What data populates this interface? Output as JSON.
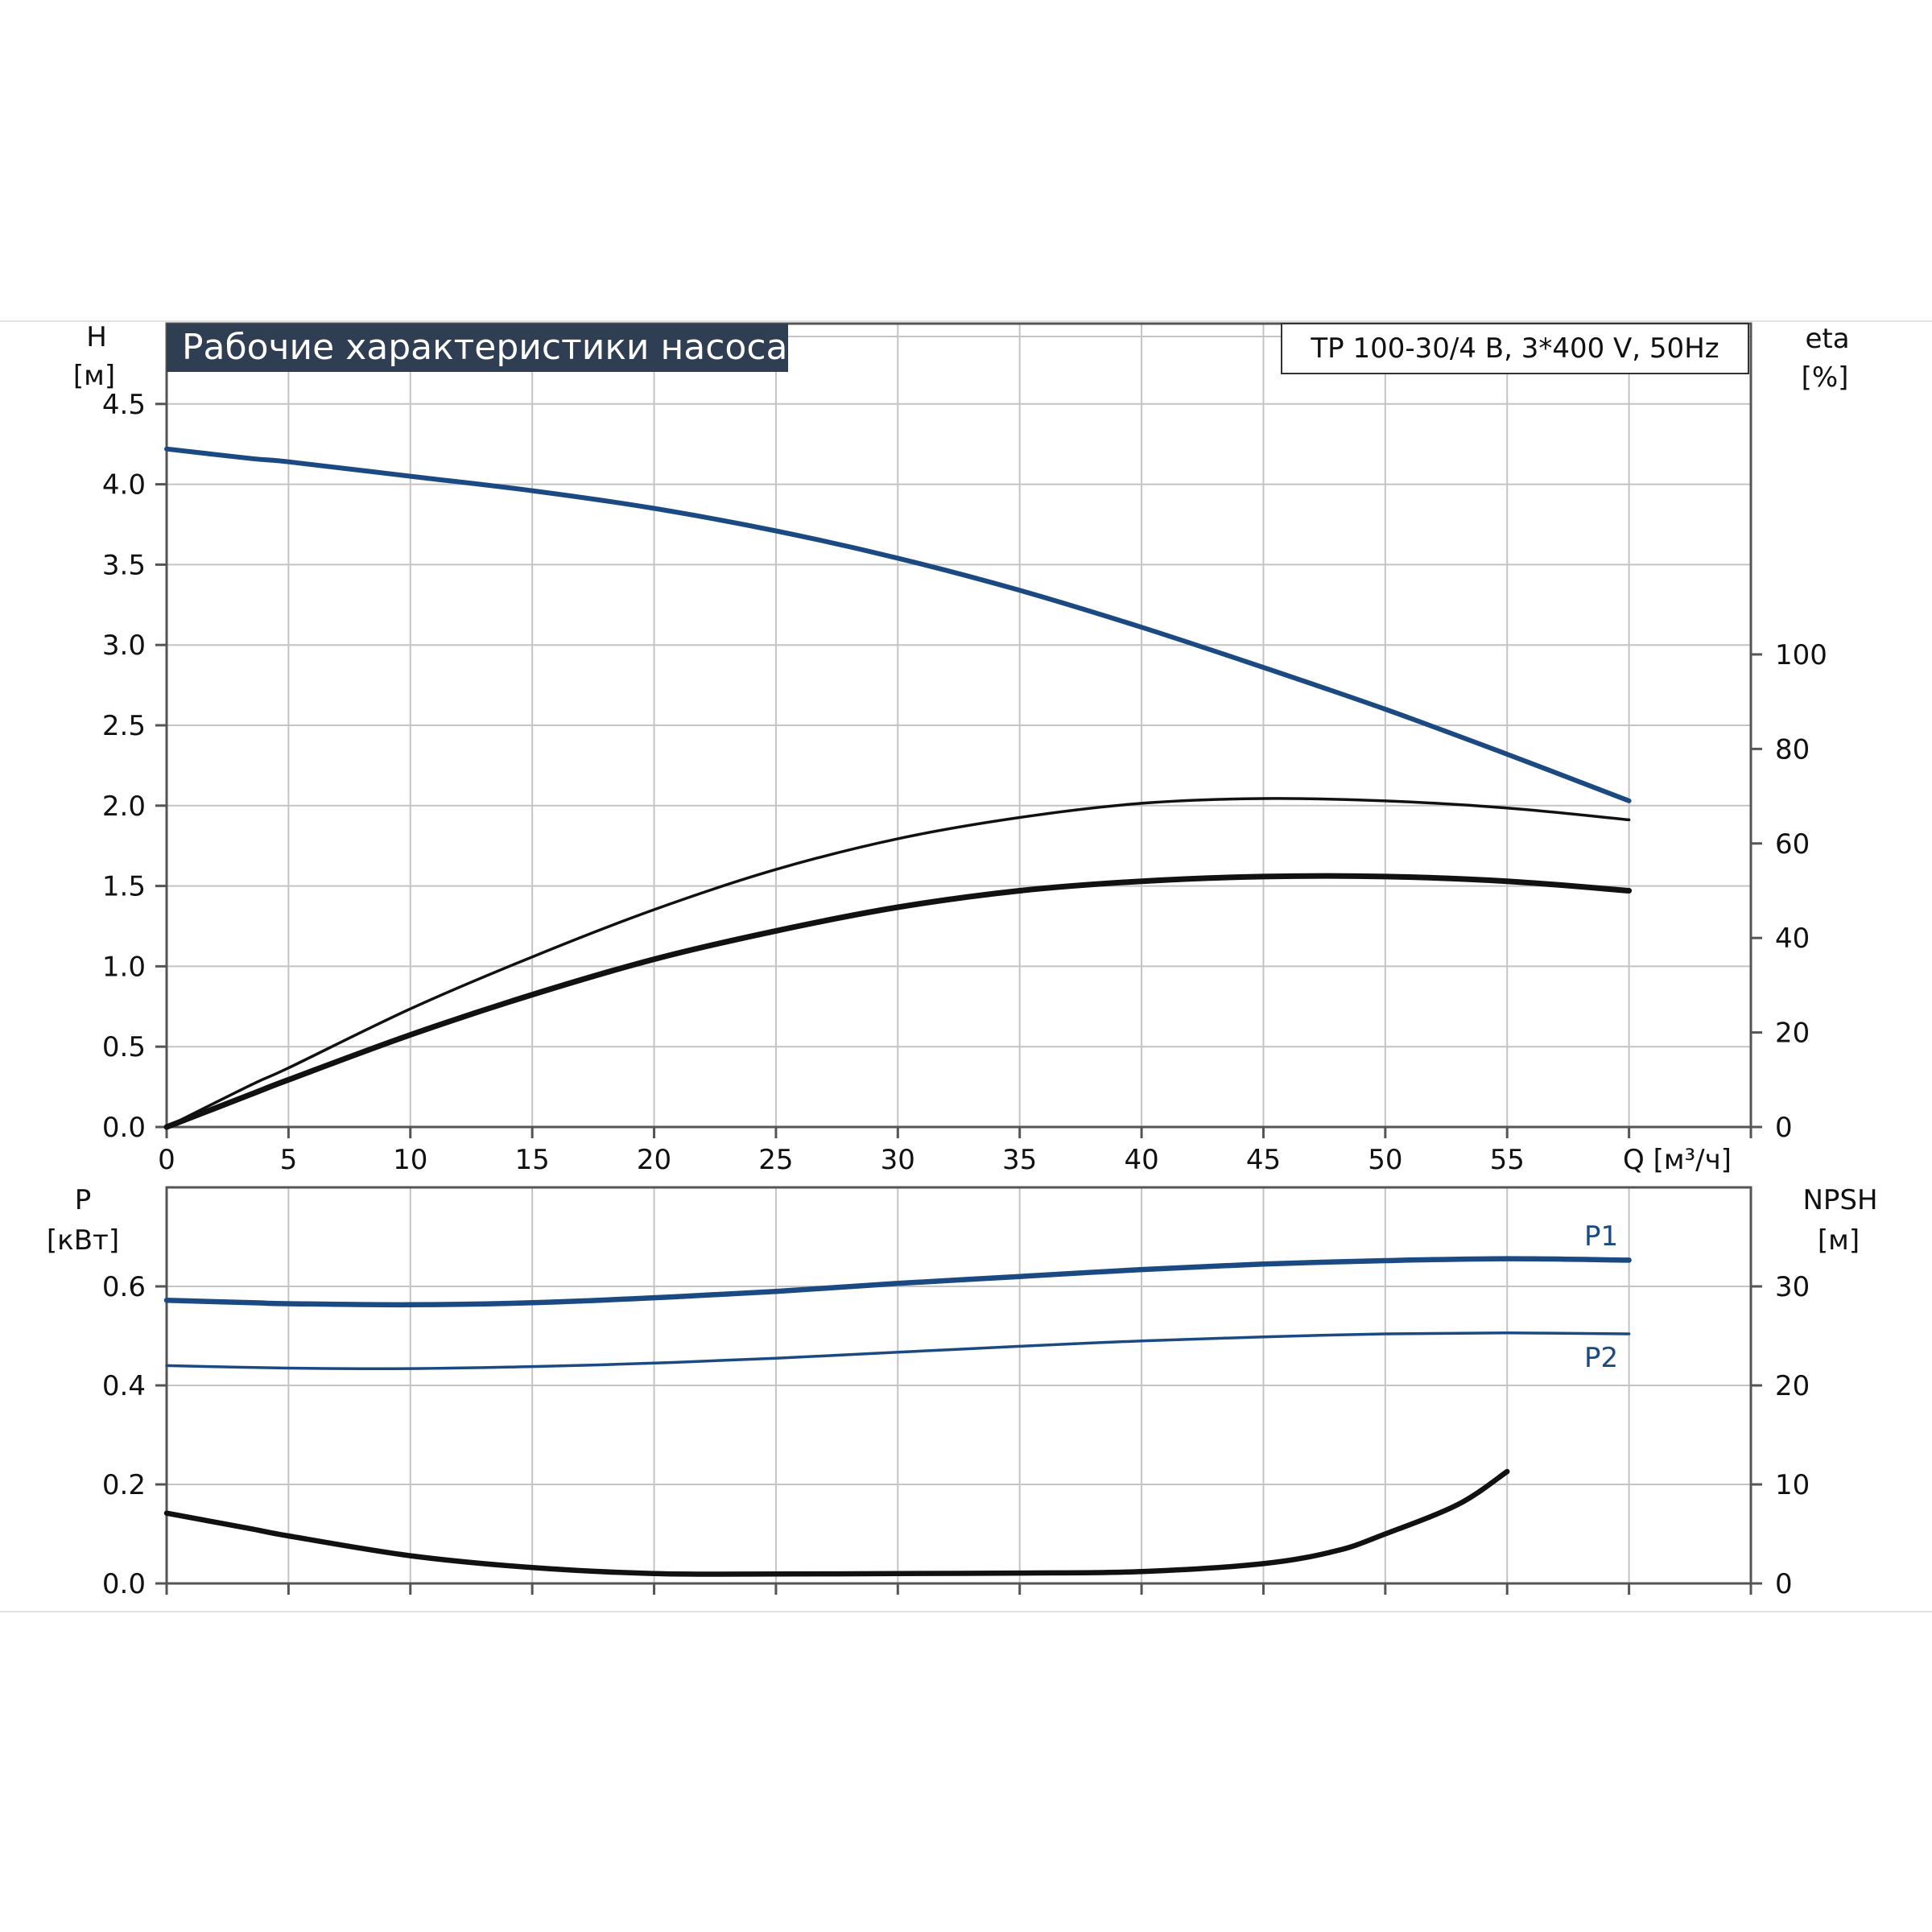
{
  "title": "Рабочие характеристики насоса",
  "model_label": "TP 100-30/4 B, 3*400 V, 50Hz",
  "colors": {
    "title_bg": "#2f3e52",
    "blue": "#1b4a82",
    "black": "#111111",
    "grid": "#c4c4c4",
    "frame": "#555555"
  },
  "chart_data": [
    {
      "type": "line",
      "x_axis": {
        "label": "Q [м³/ч]",
        "range": [
          0,
          65
        ],
        "ticks": [
          0,
          5,
          10,
          15,
          20,
          25,
          30,
          35,
          40,
          45,
          50,
          55
        ]
      },
      "y_left": {
        "label_top": "H",
        "label_unit": "[м]",
        "range": [
          0,
          5.0
        ],
        "ticks": [
          "0.0",
          "0.5",
          "1.0",
          "1.5",
          "2.0",
          "2.5",
          "3.0",
          "3.5",
          "4.0",
          "4.5"
        ]
      },
      "y_right": {
        "label_top": "eta",
        "label_unit": "[%]",
        "range": [
          0,
          170
        ],
        "ticks": [
          "0",
          "20",
          "40",
          "60",
          "80",
          "100"
        ]
      },
      "grid": true,
      "series": [
        {
          "key": "head",
          "axis": "left",
          "color": "#1b4a82",
          "x": [
            0,
            3.5,
            5,
            10,
            15,
            20,
            25,
            30,
            35,
            40,
            45,
            50,
            55,
            60
          ],
          "y": [
            4.22,
            4.16,
            4.14,
            4.05,
            3.96,
            3.85,
            3.71,
            3.54,
            3.34,
            3.11,
            2.86,
            2.6,
            2.32,
            2.03
          ]
        },
        {
          "key": "eta_thin",
          "axis": "right",
          "color": "#111111",
          "x": [
            0,
            3.5,
            5,
            10,
            15,
            20,
            25,
            30,
            35,
            40,
            45,
            50,
            55,
            60
          ],
          "y": [
            0,
            9,
            12.5,
            25,
            36,
            46,
            54.5,
            61,
            65.5,
            68.5,
            69.5,
            69,
            67.5,
            65
          ]
        },
        {
          "key": "eta_thick",
          "axis": "right",
          "color": "#111111",
          "x": [
            0,
            3.5,
            5,
            10,
            15,
            20,
            25,
            30,
            35,
            40,
            45,
            50,
            55,
            60
          ],
          "y": [
            0,
            7,
            10,
            19.5,
            28,
            35.5,
            41.5,
            46.5,
            50,
            52,
            53,
            53,
            52,
            50
          ]
        }
      ]
    },
    {
      "type": "line",
      "x_axis": {
        "range": [
          0,
          65
        ]
      },
      "y_left": {
        "label_top": "P",
        "label_unit": "[кВт]",
        "range": [
          0,
          0.8
        ],
        "ticks": [
          "0.0",
          "0.2",
          "0.4",
          "0.6"
        ]
      },
      "y_right": {
        "label_top": "NPSH",
        "label_unit": "[м]",
        "range": [
          0,
          40
        ],
        "ticks": [
          "0",
          "10",
          "20",
          "30"
        ]
      },
      "grid": true,
      "series": [
        {
          "key": "p1",
          "name": "P1",
          "axis": "left",
          "color": "#1b4a82",
          "x": [
            0,
            3.5,
            5,
            10,
            15,
            20,
            25,
            30,
            35,
            40,
            45,
            50,
            55,
            60
          ],
          "y": [
            0.572,
            0.567,
            0.565,
            0.563,
            0.567,
            0.577,
            0.59,
            0.606,
            0.62,
            0.634,
            0.645,
            0.652,
            0.656,
            0.653
          ]
        },
        {
          "key": "p2",
          "name": "P2",
          "axis": "left",
          "color": "#1b4a82",
          "x": [
            0,
            5,
            10,
            15,
            20,
            25,
            30,
            35,
            40,
            45,
            50,
            55,
            60
          ],
          "y": [
            0.44,
            0.435,
            0.434,
            0.438,
            0.445,
            0.455,
            0.467,
            0.479,
            0.49,
            0.498,
            0.504,
            0.506,
            0.504
          ]
        },
        {
          "key": "npsh",
          "axis": "right",
          "color": "#111111",
          "x": [
            0,
            3.5,
            5,
            10,
            15,
            20,
            25,
            30,
            35,
            40,
            45,
            48,
            50,
            53,
            55
          ],
          "y": [
            7.1,
            5.5,
            4.8,
            2.8,
            1.6,
            1.0,
            0.95,
            1.0,
            1.05,
            1.2,
            2.0,
            3.3,
            5.0,
            8.0,
            11.3
          ]
        }
      ]
    }
  ]
}
